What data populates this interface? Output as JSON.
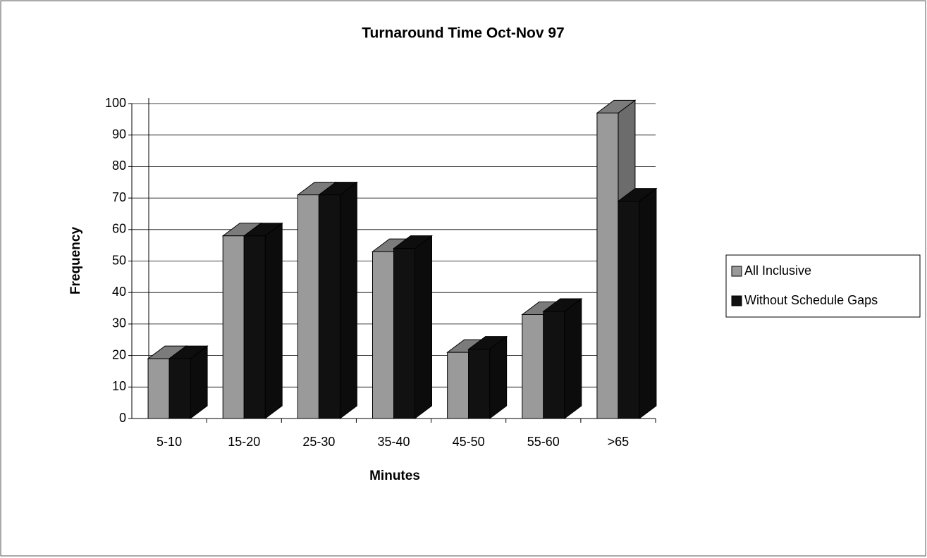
{
  "chart_data": {
    "type": "bar3d",
    "title": "Turnaround Time Oct-Nov 97",
    "x_label": "Minutes",
    "y_label": "Frequency",
    "categories": [
      "5-10",
      "15-20",
      "25-30",
      "35-40",
      "45-50",
      "55-60",
      ">65"
    ],
    "series": [
      {
        "name": "All Inclusive",
        "color": "#9a9a9a",
        "values": [
          19,
          58,
          71,
          53,
          21,
          33,
          97
        ]
      },
      {
        "name": "Without Schedule Gaps",
        "color": "#111111",
        "values": [
          19,
          58,
          71,
          54,
          22,
          34,
          69
        ]
      }
    ],
    "ylim": [
      0,
      100
    ],
    "yticks": [
      0,
      10,
      20,
      30,
      40,
      50,
      60,
      70,
      80,
      90,
      100
    ],
    "grid": true,
    "legend": "right"
  }
}
